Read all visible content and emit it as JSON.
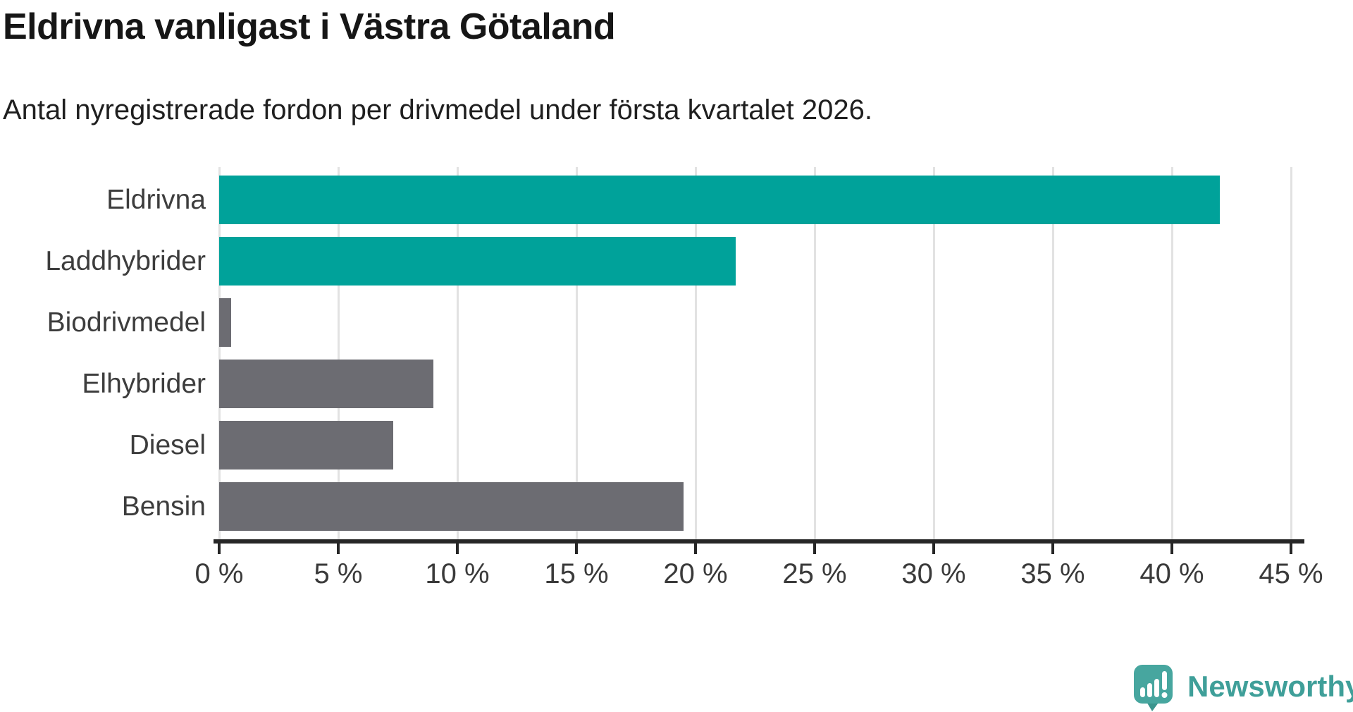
{
  "header": {
    "title": "Eldrivna vanligast i Västra Götaland",
    "subtitle": "Antal nyregistrerade fordon per drivmedel under första kvartalet 2026."
  },
  "chart_data": {
    "type": "bar",
    "orientation": "horizontal",
    "title": "Eldrivna vanligast i Västra Götaland",
    "subtitle": "Antal nyregistrerade fordon per drivmedel under första kvartalet 2026.",
    "categories": [
      "Eldrivna",
      "Laddhybrider",
      "Biodrivmedel",
      "Elhybrider",
      "Diesel",
      "Bensin"
    ],
    "values": [
      42.0,
      21.7,
      0.5,
      9.0,
      7.3,
      19.5
    ],
    "unit": "%",
    "bar_colors": [
      "#00a29a",
      "#00a29a",
      "#6c6c72",
      "#6c6c72",
      "#6c6c72",
      "#6c6c72"
    ],
    "highlight_color": "#00a29a",
    "default_color": "#6c6c72",
    "xlim": [
      0,
      45
    ],
    "x_ticks": [
      0,
      5,
      10,
      15,
      20,
      25,
      30,
      35,
      40,
      45
    ],
    "x_tick_labels": [
      "0 %",
      "5 %",
      "10 %",
      "15 %",
      "20 %",
      "25 %",
      "30 %",
      "35 %",
      "40 %",
      "45 %"
    ],
    "grid": "vertical-gridlines-on",
    "legend": "none",
    "gridline_color": "#e2e2e2",
    "axis_color": "#262626",
    "label_color": "#3d3d3d"
  },
  "footer": {
    "brand": "Newsworthy",
    "brand_color": "#3f9f99",
    "logo_icon": "newsworthy-speech-bubble-chart-icon",
    "logo_icon_color": "#47a69f",
    "logo_icon_tail_color": "#3a948d"
  }
}
